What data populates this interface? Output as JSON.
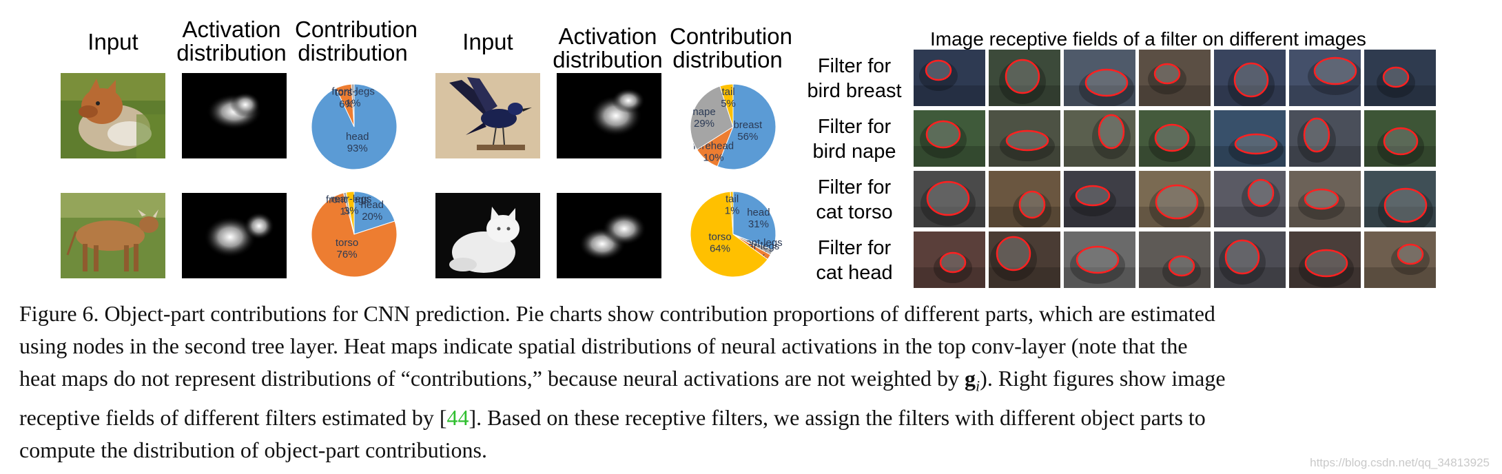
{
  "headers": {
    "input_1": "Input",
    "activation_1": "Activation distribution",
    "contribution_1": "Contribution distribution",
    "input_2": "Input",
    "activation_2": "Activation distribution",
    "contribution_2": "Contribution distribution",
    "rf_title": "Image receptive fields of a filter on different images"
  },
  "colors": {
    "blue": "#5b9bd5",
    "orange": "#ed7d31",
    "gray": "#a5a5a5",
    "yellow": "#ffc000",
    "ref_green": "#2fbf2f",
    "rf_outline": "#ff2020"
  },
  "examples": [
    {
      "name": "dog",
      "input_icon": "dog-photo"
    },
    {
      "name": "bird",
      "input_icon": "bird-photo"
    },
    {
      "name": "cow",
      "input_icon": "cow-photo"
    },
    {
      "name": "cat",
      "input_icon": "cat-photo"
    }
  ],
  "chart_data": [
    {
      "type": "pie",
      "title": "",
      "slices": [
        {
          "label": "head",
          "value": 93,
          "text": "93%",
          "color": "#5b9bd5"
        },
        {
          "label": "torso",
          "value": 6,
          "text": "6%",
          "color": "#ed7d31"
        },
        {
          "label": "front-legs",
          "value": 1,
          "text": "1%",
          "color": "#a5a5a5"
        }
      ]
    },
    {
      "type": "pie",
      "title": "",
      "slices": [
        {
          "label": "breast",
          "value": 56,
          "text": "56%",
          "color": "#5b9bd5"
        },
        {
          "label": "forehead",
          "value": 10,
          "text": "10%",
          "color": "#ed7d31"
        },
        {
          "label": "nape",
          "value": 29,
          "text": "29%",
          "color": "#a5a5a5"
        },
        {
          "label": "tail",
          "value": 5,
          "text": "5%",
          "color": "#ffc000"
        }
      ]
    },
    {
      "type": "pie",
      "title": "",
      "slices": [
        {
          "label": "head",
          "value": 20,
          "text": "20%",
          "color": "#5b9bd5"
        },
        {
          "label": "torso",
          "value": 76,
          "text": "76%",
          "color": "#ed7d31"
        },
        {
          "label": "front-legs",
          "value": 1,
          "text": "1%",
          "color": "#a5a5a5"
        },
        {
          "label": "rear-legs",
          "value": 3,
          "text": "3%",
          "color": "#ffc000"
        }
      ]
    },
    {
      "type": "pie",
      "title": "",
      "slices": [
        {
          "label": "head",
          "value": 31,
          "text": "31%",
          "color": "#5b9bd5"
        },
        {
          "label": "front-legs",
          "value": 2,
          "text": "2%",
          "color": "#a5a5a5"
        },
        {
          "label": "rear-legs",
          "value": 2,
          "text": "2%",
          "color": "#ed7d31"
        },
        {
          "label": "torso",
          "value": 64,
          "text": "64%",
          "color": "#ffc000"
        },
        {
          "label": "tail",
          "value": 1,
          "text": "1%",
          "color": "#ffc000"
        }
      ]
    }
  ],
  "filters": [
    {
      "label_line1": "Filter for",
      "label_line2": "bird breast"
    },
    {
      "label_line1": "Filter for",
      "label_line2": "bird nape"
    },
    {
      "label_line1": "Filter for",
      "label_line2": "cat torso"
    },
    {
      "label_line1": "Filter for",
      "label_line2": "cat head"
    }
  ],
  "caption": {
    "line1": "Figure 6. Object-part contributions for CNN prediction.  Pie charts show contribution proportions of different parts, which are estimated",
    "line2": "using nodes in the second tree layer.  Heat maps indicate spatial distributions of neural activations in the top conv-layer (note that the",
    "line3_a": "heat maps do not represent distributions of “contributions,” because neural activations are not weighted by ",
    "line3_g": "g",
    "line3_sub": "i",
    "line3_b": "). Right figures show image",
    "line4_a": "receptive fields of different filters estimated by [",
    "line4_ref": "44",
    "line4_b": "].  Based on these receptive filters, we assign the filters with different object parts to",
    "line5": "compute the distribution of object-part contributions."
  },
  "watermark": "https://blog.csdn.net/qq_34813925"
}
